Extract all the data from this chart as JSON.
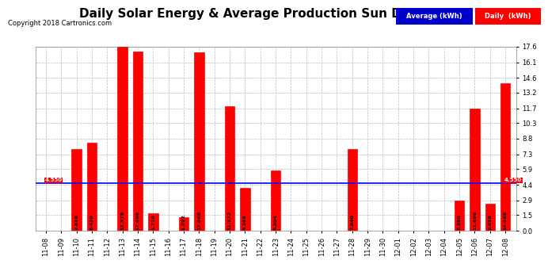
{
  "title": "Daily Solar Energy & Average Production Sun Dec 9 16:23",
  "copyright": "Copyright 2018 Cartronics.com",
  "categories": [
    "11-08",
    "11-09",
    "11-10",
    "11-11",
    "11-12",
    "11-13",
    "11-14",
    "11-15",
    "11-16",
    "11-17",
    "11-18",
    "11-19",
    "11-20",
    "11-21",
    "11-22",
    "11-23",
    "11-24",
    "11-25",
    "11-26",
    "11-27",
    "11-28",
    "11-29",
    "11-30",
    "12-01",
    "12-02",
    "12-03",
    "12-04",
    "12-05",
    "12-06",
    "12-07",
    "12-08"
  ],
  "values": [
    0.0,
    0.0,
    7.816,
    8.42,
    0.0,
    17.576,
    17.096,
    1.71,
    0.0,
    1.292,
    17.06,
    0.0,
    11.872,
    4.108,
    0.0,
    5.804,
    0.0,
    0.0,
    0.0,
    0.0,
    7.84,
    0.0,
    0.0,
    0.0,
    0.0,
    0.0,
    0.0,
    2.86,
    11.696,
    2.628,
    14.088
  ],
  "average": 4.55,
  "bar_color": "#ff0000",
  "avg_line_color": "#0000ff",
  "background_color": "#ffffff",
  "plot_bg_color": "#ffffff",
  "grid_color": "#bbbbbb",
  "ylim": [
    0.0,
    17.6
  ],
  "yticks": [
    0.0,
    1.5,
    2.9,
    4.4,
    5.9,
    7.3,
    8.8,
    10.3,
    11.7,
    13.2,
    14.6,
    16.1,
    17.6
  ],
  "title_fontsize": 11,
  "copyright_fontsize": 6,
  "tick_fontsize": 6,
  "value_fontsize": 5,
  "avg_label": "4.550",
  "avg_label_color": "#ffffff",
  "legend_avg_text": "Average (kWh)",
  "legend_daily_text": "Daily  (kWh)",
  "legend_avg_bg": "#0000cc",
  "legend_daily_bg": "#ff0000"
}
